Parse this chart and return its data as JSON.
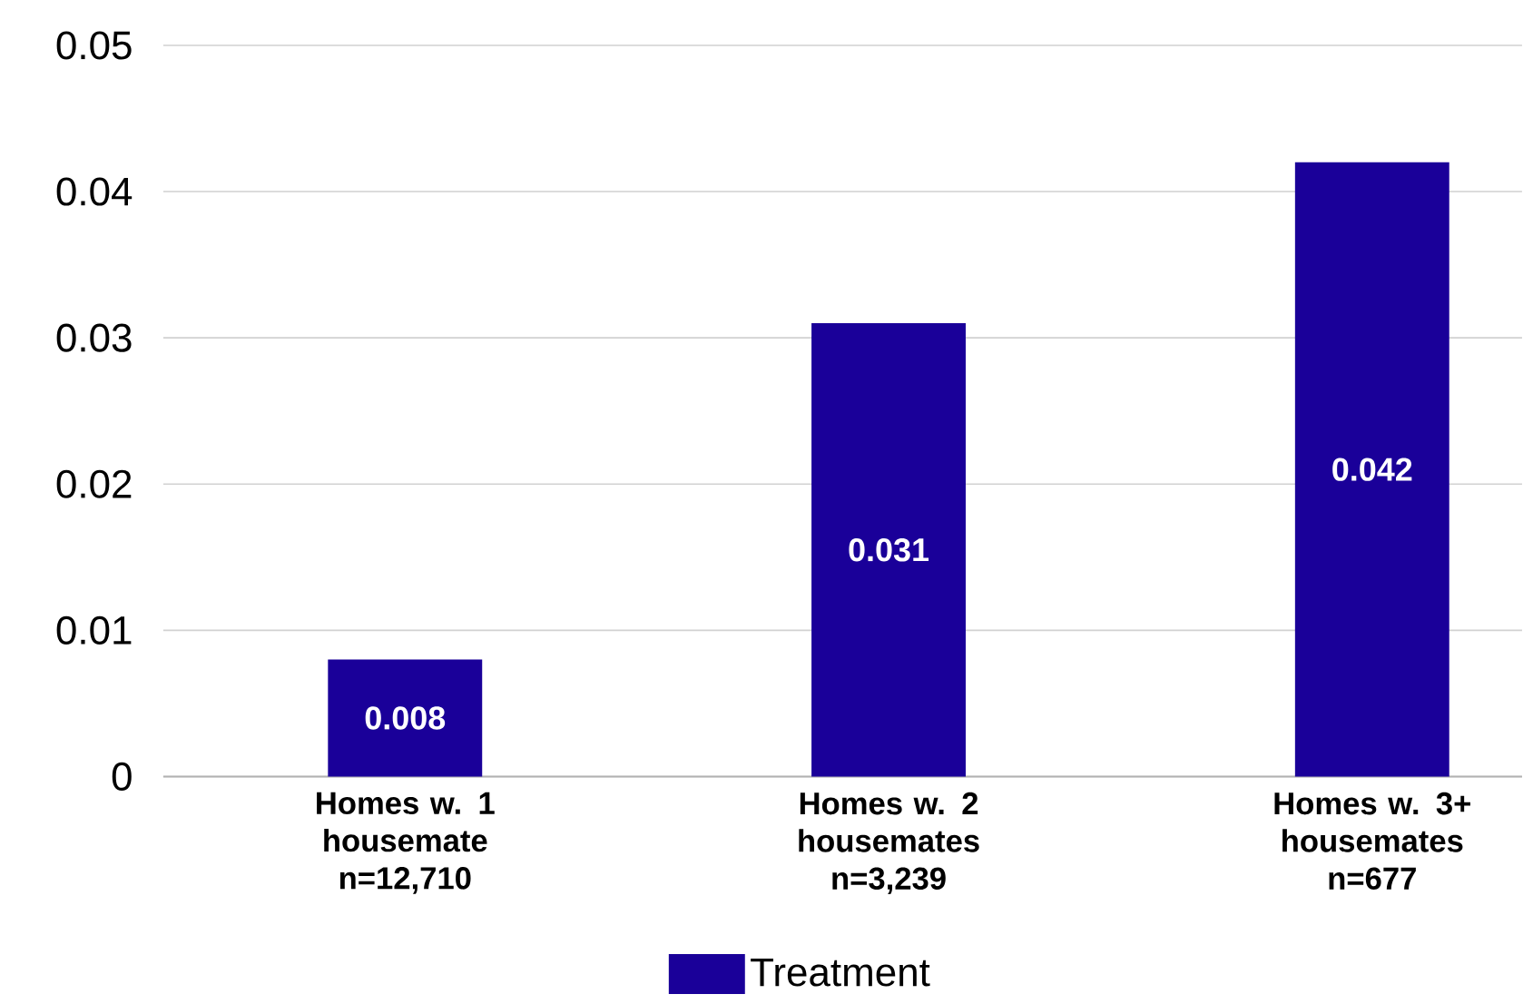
{
  "chart_data": {
    "type": "bar",
    "categories": [
      "Homes w. 1 housemate n=12,710",
      "Homes w. 2 housemates n=3,239",
      "Homes w. 3+ housemates n=677"
    ],
    "series": [
      {
        "name": "Treatment",
        "color": "#1a0099",
        "values": [
          0.008,
          0.031,
          0.042
        ]
      }
    ],
    "ylim": [
      0,
      0.05
    ],
    "yticks": [
      0,
      0.01,
      0.02,
      0.03,
      0.04,
      0.05
    ],
    "grid": "y",
    "legend": "bottom",
    "data_labels": true
  }
}
